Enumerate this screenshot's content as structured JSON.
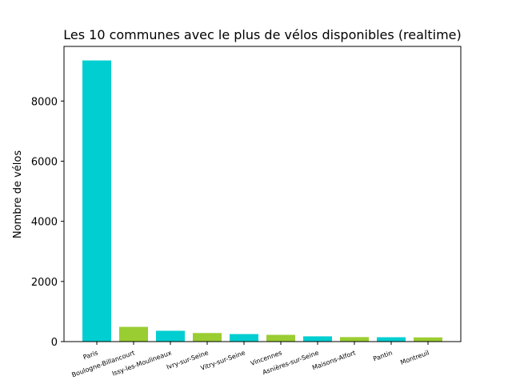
{
  "chart_data": {
    "type": "bar",
    "title": "Les 10 communes avec le plus de vélos disponibles (realtime)",
    "xlabel": "",
    "ylabel": "Nombre de vélos",
    "categories": [
      "Paris",
      "Boulogne-Billancourt",
      "Issy-les-Moulineaux",
      "Ivry-sur-Seine",
      "Vitry-sur-Seine",
      "Vincennes",
      "Asnières-sur-Seine",
      "Maisons-Alfort",
      "Pantin",
      "Montreuil"
    ],
    "values": [
      9350,
      490,
      360,
      285,
      250,
      225,
      175,
      150,
      145,
      140
    ],
    "bar_colors": [
      "#00CED1",
      "#9ACD32"
    ],
    "ylim": [
      0,
      9817
    ],
    "yticks": [
      0,
      2000,
      4000,
      6000,
      8000
    ],
    "ytick_labels": [
      "0",
      "2000",
      "4000",
      "6000",
      "8000"
    ],
    "grid": false,
    "legend": "none"
  }
}
